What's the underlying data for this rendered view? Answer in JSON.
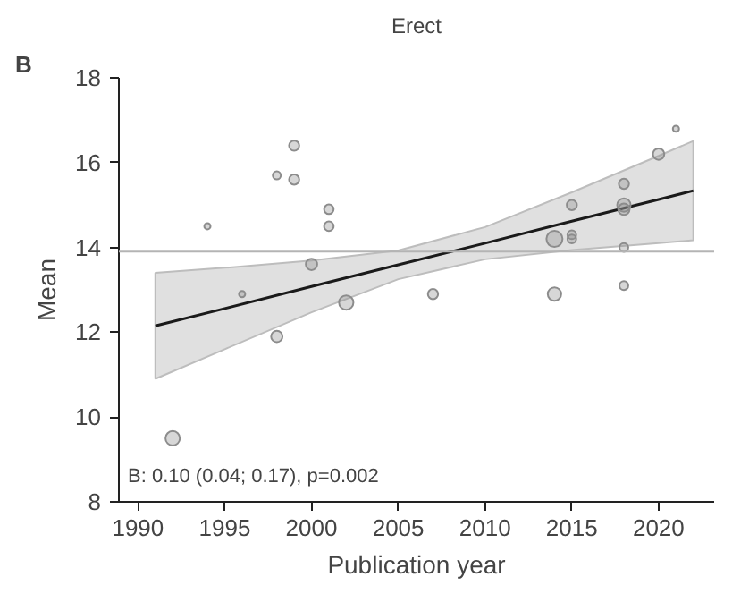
{
  "chart_data": {
    "type": "bubble",
    "title": "Erect",
    "xlabel": "Publication year",
    "ylabel": "Mean",
    "xlim": [
      1988.9,
      2023.2
    ],
    "ylim": [
      8,
      18
    ],
    "xticks": [
      1990,
      1995,
      2000,
      2005,
      2010,
      2015,
      2020
    ],
    "yticks": [
      8,
      10,
      12,
      14,
      16,
      18
    ],
    "grid": false,
    "ref_lines": [
      {
        "axis": "y",
        "value": 13.9,
        "color": "#b4b4b4"
      }
    ],
    "annotations": [
      "B",
      "B: 0.10 (0.04; 0.17), p=0.002"
    ],
    "series": [
      {
        "color": "#8c8c8c",
        "x": [
          1999,
          1998,
          1999,
          2001,
          2001,
          1994,
          2000,
          1996,
          2002,
          1998,
          1992,
          2021,
          2020,
          2018,
          2018,
          2018,
          2015,
          2014,
          2015,
          2015,
          2018,
          2018,
          2014,
          2007
        ],
        "values": [
          16.4,
          15.7,
          15.6,
          14.9,
          14.5,
          14.5,
          13.6,
          12.9,
          12.7,
          11.9,
          9.5,
          16.8,
          16.2,
          15.5,
          15.0,
          14.9,
          15.0,
          14.2,
          14.3,
          14.2,
          14.0,
          13.1,
          12.9,
          12.9
        ],
        "sizes": [
          0.4,
          0.25,
          0.4,
          0.35,
          0.35,
          0.15,
          0.5,
          0.15,
          0.8,
          0.5,
          0.8,
          0.15,
          0.5,
          0.4,
          0.7,
          0.5,
          0.4,
          1,
          0.3,
          0.3,
          0.3,
          0.3,
          0.7,
          0.4
        ]
      },
      {
        "type": "line",
        "color": "#1a1a1a",
        "x": [
          1991,
          1995,
          2000,
          2005,
          2010,
          2015,
          2020,
          2022
        ],
        "values": [
          12.15,
          12.56,
          13.08,
          13.59,
          14.1,
          14.62,
          15.13,
          15.34
        ],
        "lower": [
          10.9,
          11.6,
          12.47,
          13.25,
          13.72,
          13.94,
          14.1,
          14.17
        ],
        "upper": [
          13.4,
          13.52,
          13.69,
          13.93,
          14.48,
          15.3,
          16.16,
          16.51
        ]
      }
    ]
  }
}
